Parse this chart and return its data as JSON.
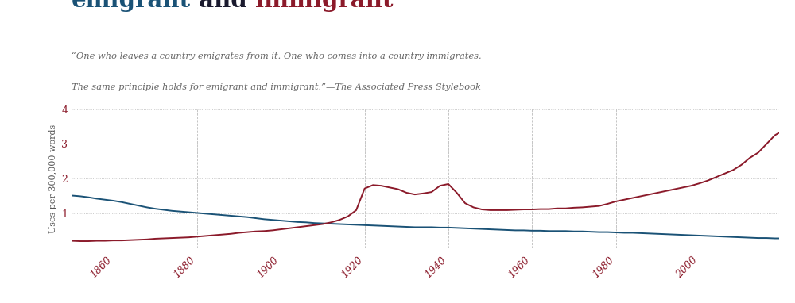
{
  "title_parts": [
    {
      "text": "emigrant",
      "color": "#1a5276"
    },
    {
      "text": " and ",
      "color": "#1a1a2e"
    },
    {
      "text": "immigrant",
      "color": "#8b1a2a"
    }
  ],
  "quote_line1": "“One who leaves a country emigrates from it. One who comes into a country immigrates.",
  "quote_line2": "The same principle holds for emigrant and immigrant.”—The Associated Press Stylebook",
  "ylabel": "Uses per 300,000 words",
  "xlim": [
    1850,
    2019
  ],
  "ylim": [
    0,
    4.0
  ],
  "yticks": [
    1,
    2,
    3,
    4
  ],
  "xticks": [
    1860,
    1880,
    1900,
    1920,
    1940,
    1960,
    1980,
    2000
  ],
  "emigrant_color": "#1a5276",
  "immigrant_color": "#8b1a2a",
  "background_color": "#ffffff",
  "emigrant_years": [
    1850,
    1852,
    1854,
    1856,
    1858,
    1860,
    1862,
    1864,
    1866,
    1868,
    1870,
    1872,
    1874,
    1876,
    1878,
    1880,
    1882,
    1884,
    1886,
    1888,
    1890,
    1892,
    1894,
    1896,
    1898,
    1900,
    1902,
    1904,
    1906,
    1908,
    1910,
    1912,
    1914,
    1916,
    1918,
    1920,
    1922,
    1924,
    1926,
    1928,
    1930,
    1932,
    1934,
    1936,
    1938,
    1940,
    1942,
    1944,
    1946,
    1948,
    1950,
    1952,
    1954,
    1956,
    1958,
    1960,
    1962,
    1964,
    1966,
    1968,
    1970,
    1972,
    1974,
    1976,
    1978,
    1980,
    1982,
    1984,
    1986,
    1988,
    1990,
    1992,
    1994,
    1996,
    1998,
    2000,
    2002,
    2004,
    2006,
    2008,
    2010,
    2012,
    2014,
    2016,
    2018,
    2019
  ],
  "emigrant_values": [
    1.52,
    1.5,
    1.47,
    1.43,
    1.4,
    1.37,
    1.33,
    1.28,
    1.23,
    1.18,
    1.14,
    1.11,
    1.08,
    1.06,
    1.04,
    1.02,
    1.0,
    0.98,
    0.96,
    0.94,
    0.92,
    0.9,
    0.87,
    0.84,
    0.82,
    0.8,
    0.78,
    0.76,
    0.75,
    0.73,
    0.72,
    0.71,
    0.7,
    0.69,
    0.68,
    0.67,
    0.66,
    0.65,
    0.64,
    0.63,
    0.62,
    0.61,
    0.61,
    0.61,
    0.6,
    0.6,
    0.59,
    0.58,
    0.57,
    0.56,
    0.55,
    0.54,
    0.53,
    0.52,
    0.52,
    0.51,
    0.51,
    0.5,
    0.5,
    0.5,
    0.49,
    0.49,
    0.48,
    0.47,
    0.47,
    0.46,
    0.45,
    0.45,
    0.44,
    0.43,
    0.42,
    0.41,
    0.4,
    0.39,
    0.38,
    0.37,
    0.36,
    0.35,
    0.34,
    0.33,
    0.32,
    0.31,
    0.3,
    0.3,
    0.29,
    0.29
  ],
  "immigrant_years": [
    1850,
    1852,
    1854,
    1856,
    1858,
    1860,
    1862,
    1864,
    1866,
    1868,
    1870,
    1872,
    1874,
    1876,
    1878,
    1880,
    1882,
    1884,
    1886,
    1888,
    1890,
    1892,
    1894,
    1896,
    1898,
    1900,
    1902,
    1904,
    1906,
    1908,
    1910,
    1912,
    1914,
    1916,
    1918,
    1920,
    1922,
    1924,
    1926,
    1928,
    1930,
    1932,
    1934,
    1936,
    1938,
    1940,
    1942,
    1944,
    1946,
    1948,
    1950,
    1952,
    1954,
    1956,
    1958,
    1960,
    1962,
    1964,
    1966,
    1968,
    1970,
    1972,
    1974,
    1976,
    1978,
    1980,
    1982,
    1984,
    1986,
    1988,
    1990,
    1992,
    1994,
    1996,
    1998,
    2000,
    2002,
    2004,
    2006,
    2008,
    2010,
    2012,
    2014,
    2016,
    2018,
    2019
  ],
  "immigrant_values": [
    0.22,
    0.21,
    0.21,
    0.22,
    0.22,
    0.23,
    0.23,
    0.24,
    0.25,
    0.26,
    0.28,
    0.29,
    0.3,
    0.31,
    0.32,
    0.34,
    0.36,
    0.38,
    0.4,
    0.42,
    0.45,
    0.47,
    0.49,
    0.5,
    0.52,
    0.55,
    0.58,
    0.61,
    0.64,
    0.67,
    0.7,
    0.75,
    0.82,
    0.92,
    1.1,
    1.72,
    1.82,
    1.8,
    1.75,
    1.7,
    1.6,
    1.55,
    1.58,
    1.62,
    1.8,
    1.85,
    1.6,
    1.3,
    1.18,
    1.12,
    1.1,
    1.1,
    1.1,
    1.11,
    1.12,
    1.12,
    1.13,
    1.13,
    1.15,
    1.15,
    1.17,
    1.18,
    1.2,
    1.22,
    1.28,
    1.35,
    1.4,
    1.45,
    1.5,
    1.55,
    1.6,
    1.65,
    1.7,
    1.75,
    1.8,
    1.87,
    1.95,
    2.05,
    2.15,
    2.25,
    2.4,
    2.6,
    2.75,
    3.0,
    3.25,
    3.32
  ]
}
